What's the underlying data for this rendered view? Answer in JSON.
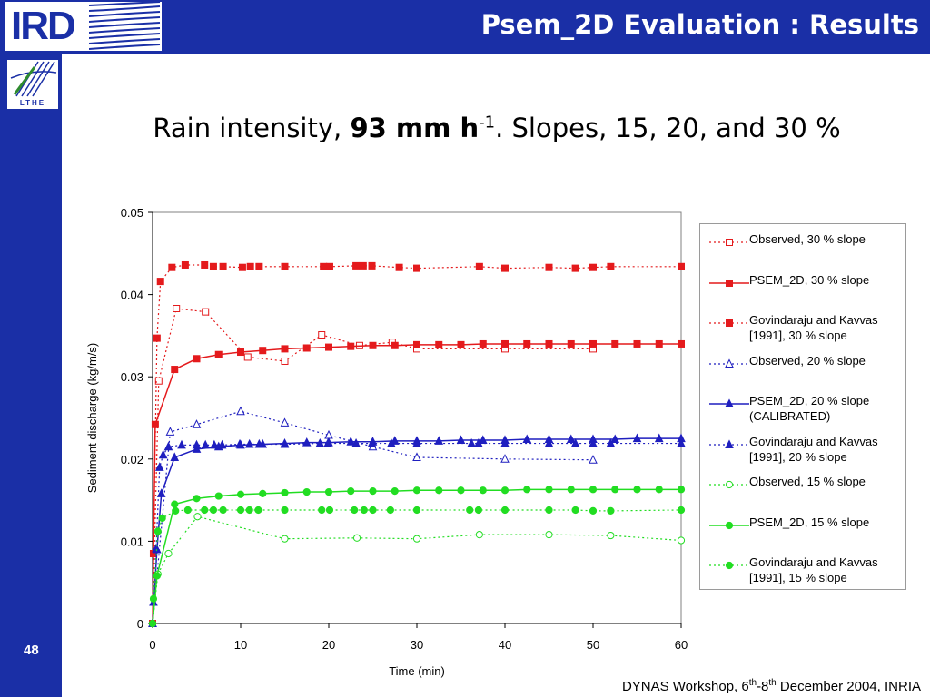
{
  "header": {
    "logo_text": "IRD",
    "title": "Psem_2D Evaluation : Results"
  },
  "sidebar": {
    "logo_text": "LTHE",
    "slide_number": "48"
  },
  "subtitle": {
    "part1": "Rain intensity, ",
    "bold": "93 mm h",
    "sup": "-1",
    "part2": ". Slopes, 15, 20, and 30 %"
  },
  "footer": {
    "text1": "DYNAS Workshop, 6",
    "sup1": "th",
    "text2": "-8",
    "sup2": "th",
    "text3": " December 2004, INRIA"
  },
  "colors": {
    "brand": "#1a2fa6",
    "slope30": "#e41a1c",
    "slope20": "#1f1fbf",
    "slope15": "#22dd22"
  },
  "chart_data": {
    "type": "line",
    "title": "",
    "xlabel": "Time (min)",
    "ylabel": "Sediment discharge (kg/m/s)",
    "xlim": [
      0,
      60
    ],
    "ylim": [
      0,
      0.05
    ],
    "xticks": [
      "0",
      "10",
      "20",
      "30",
      "40",
      "50",
      "60"
    ],
    "yticks": [
      "0",
      "0.01",
      "0.02",
      "0.03",
      "0.04",
      "0.05"
    ],
    "grid": false,
    "legend_position": "right",
    "series": [
      {
        "name": "Observed, 30 % slope",
        "color": "#e41a1c",
        "line": "dotted",
        "marker": "square-open",
        "x": [
          0,
          0.7,
          2.7,
          6,
          10.8,
          15,
          19.2,
          23.5,
          27.2,
          30,
          40,
          50
        ],
        "y": [
          0,
          0.0295,
          0.0383,
          0.0379,
          0.0324,
          0.0319,
          0.0351,
          0.0338,
          0.0342,
          0.0334,
          0.0334,
          0.0334
        ]
      },
      {
        "name": "PSEM_2D, 30 % slope",
        "color": "#e41a1c",
        "line": "solid",
        "marker": "square",
        "x": [
          0,
          0.3,
          2.5,
          5,
          7.5,
          10,
          12.5,
          15,
          17.5,
          20,
          22.5,
          25,
          27.5,
          30,
          32.5,
          35,
          37.5,
          40,
          42.5,
          45,
          47.5,
          50,
          52.5,
          55,
          57.5,
          60
        ],
        "y": [
          0,
          0.0242,
          0.0309,
          0.0322,
          0.0327,
          0.033,
          0.0332,
          0.0334,
          0.0335,
          0.0336,
          0.0337,
          0.0338,
          0.0338,
          0.0339,
          0.0339,
          0.0339,
          0.034,
          0.034,
          0.034,
          0.034,
          0.034,
          0.034,
          0.034,
          0.034,
          0.034,
          0.034
        ]
      },
      {
        "name": "Govindaraju and Kavvas [1991], 30 % slope",
        "color": "#e41a1c",
        "line": "dotted",
        "marker": "square",
        "x": [
          0,
          0.1,
          0.5,
          0.9,
          2.2,
          3.7,
          5.9,
          6.9,
          8,
          10.2,
          11.1,
          12.1,
          15,
          19.4,
          20.1,
          23.1,
          23.9,
          24.9,
          28,
          30,
          37.1,
          40,
          45,
          48,
          50,
          52,
          60
        ],
        "y": [
          0,
          0.0085,
          0.0347,
          0.0416,
          0.0433,
          0.0436,
          0.0436,
          0.0434,
          0.0434,
          0.0433,
          0.0434,
          0.0434,
          0.0434,
          0.0434,
          0.0434,
          0.0435,
          0.0435,
          0.0435,
          0.0433,
          0.0432,
          0.0434,
          0.0432,
          0.0433,
          0.0432,
          0.0433,
          0.0434,
          0.0434
        ]
      },
      {
        "name": "Observed, 20 % slope",
        "color": "#1f1fbf",
        "line": "dotted",
        "marker": "triangle-open",
        "x": [
          0,
          2,
          5,
          10,
          15,
          20,
          25,
          30,
          40,
          50
        ],
        "y": [
          0,
          0.0233,
          0.0242,
          0.0258,
          0.0244,
          0.0229,
          0.0215,
          0.0202,
          0.02,
          0.0199
        ]
      },
      {
        "name": "PSEM_2D, 20 % slope (CALIBRATED)",
        "color": "#1f1fbf",
        "line": "solid",
        "marker": "triangle",
        "x": [
          0,
          0.5,
          1,
          2.5,
          5,
          7.5,
          10,
          12.5,
          15,
          17.5,
          20,
          22.5,
          25,
          27.5,
          30,
          32.5,
          35,
          37.5,
          40,
          42.5,
          45,
          47.5,
          50,
          52.5,
          55,
          57.5,
          60
        ],
        "y": [
          0,
          0.009,
          0.0158,
          0.0202,
          0.0212,
          0.0215,
          0.0217,
          0.0218,
          0.0219,
          0.022,
          0.022,
          0.0221,
          0.0221,
          0.0222,
          0.0222,
          0.0222,
          0.0223,
          0.0223,
          0.0223,
          0.0224,
          0.0224,
          0.0224,
          0.0224,
          0.0224,
          0.0225,
          0.0225,
          0.0225
        ]
      },
      {
        "name": "Govindaraju and Kavvas [1991], 20 % slope",
        "color": "#1f1fbf",
        "line": "dotted",
        "marker": "triangle",
        "x": [
          0,
          0.1,
          0.4,
          0.8,
          1.2,
          1.8,
          3.3,
          5,
          6,
          7,
          7.9,
          9.9,
          11,
          12.1,
          15,
          19,
          19.9,
          23.1,
          24.9,
          27.1,
          30,
          36.2,
          37,
          40,
          45,
          48,
          50,
          52,
          60
        ],
        "y": [
          0,
          0.0026,
          0.0091,
          0.019,
          0.0205,
          0.0215,
          0.0217,
          0.0217,
          0.0217,
          0.0217,
          0.0217,
          0.0218,
          0.0218,
          0.0218,
          0.0218,
          0.0219,
          0.0219,
          0.0219,
          0.0219,
          0.0219,
          0.0219,
          0.0219,
          0.0219,
          0.0219,
          0.0219,
          0.0219,
          0.0219,
          0.0219,
          0.0219
        ]
      },
      {
        "name": "Observed, 15 % slope",
        "color": "#22dd22",
        "line": "dotted",
        "marker": "circle-open",
        "x": [
          0,
          0.6,
          1.8,
          5.1,
          15,
          23.2,
          30,
          37.1,
          45,
          52,
          60
        ],
        "y": [
          0,
          0.006,
          0.0085,
          0.013,
          0.0103,
          0.0104,
          0.0103,
          0.0108,
          0.0108,
          0.0107,
          0.0101
        ]
      },
      {
        "name": "PSEM_2D, 15 % slope",
        "color": "#22dd22",
        "line": "solid",
        "marker": "circle",
        "x": [
          0,
          0.5,
          2.5,
          5,
          7.5,
          10,
          12.5,
          15,
          17.5,
          20,
          22.5,
          25,
          27.5,
          30,
          32.5,
          35,
          37.5,
          40,
          42.5,
          45,
          47.5,
          50,
          52.5,
          55,
          57.5,
          60
        ],
        "y": [
          0,
          0.0058,
          0.0145,
          0.0152,
          0.0155,
          0.0157,
          0.0158,
          0.0159,
          0.016,
          0.016,
          0.0161,
          0.0161,
          0.0161,
          0.0162,
          0.0162,
          0.0162,
          0.0162,
          0.0162,
          0.0163,
          0.0163,
          0.0163,
          0.0163,
          0.0163,
          0.0163,
          0.0163,
          0.0163
        ]
      },
      {
        "name": "Govindaraju and Kavvas [1991], 15 % slope",
        "color": "#22dd22",
        "line": "dotted",
        "marker": "circle",
        "x": [
          0,
          0.1,
          0.6,
          1.1,
          2.6,
          4,
          5.9,
          6.9,
          8,
          10,
          11,
          12,
          15,
          19.2,
          20.1,
          22.9,
          24,
          25,
          27,
          30,
          36,
          37,
          40,
          45,
          48,
          50,
          52,
          60
        ],
        "y": [
          0,
          0.003,
          0.0112,
          0.0128,
          0.0137,
          0.0138,
          0.0138,
          0.0138,
          0.0138,
          0.0138,
          0.0138,
          0.0138,
          0.0138,
          0.0138,
          0.0138,
          0.0138,
          0.0138,
          0.0138,
          0.0138,
          0.0138,
          0.0138,
          0.0138,
          0.0138,
          0.0138,
          0.0138,
          0.0137,
          0.0137,
          0.0138
        ]
      }
    ]
  }
}
